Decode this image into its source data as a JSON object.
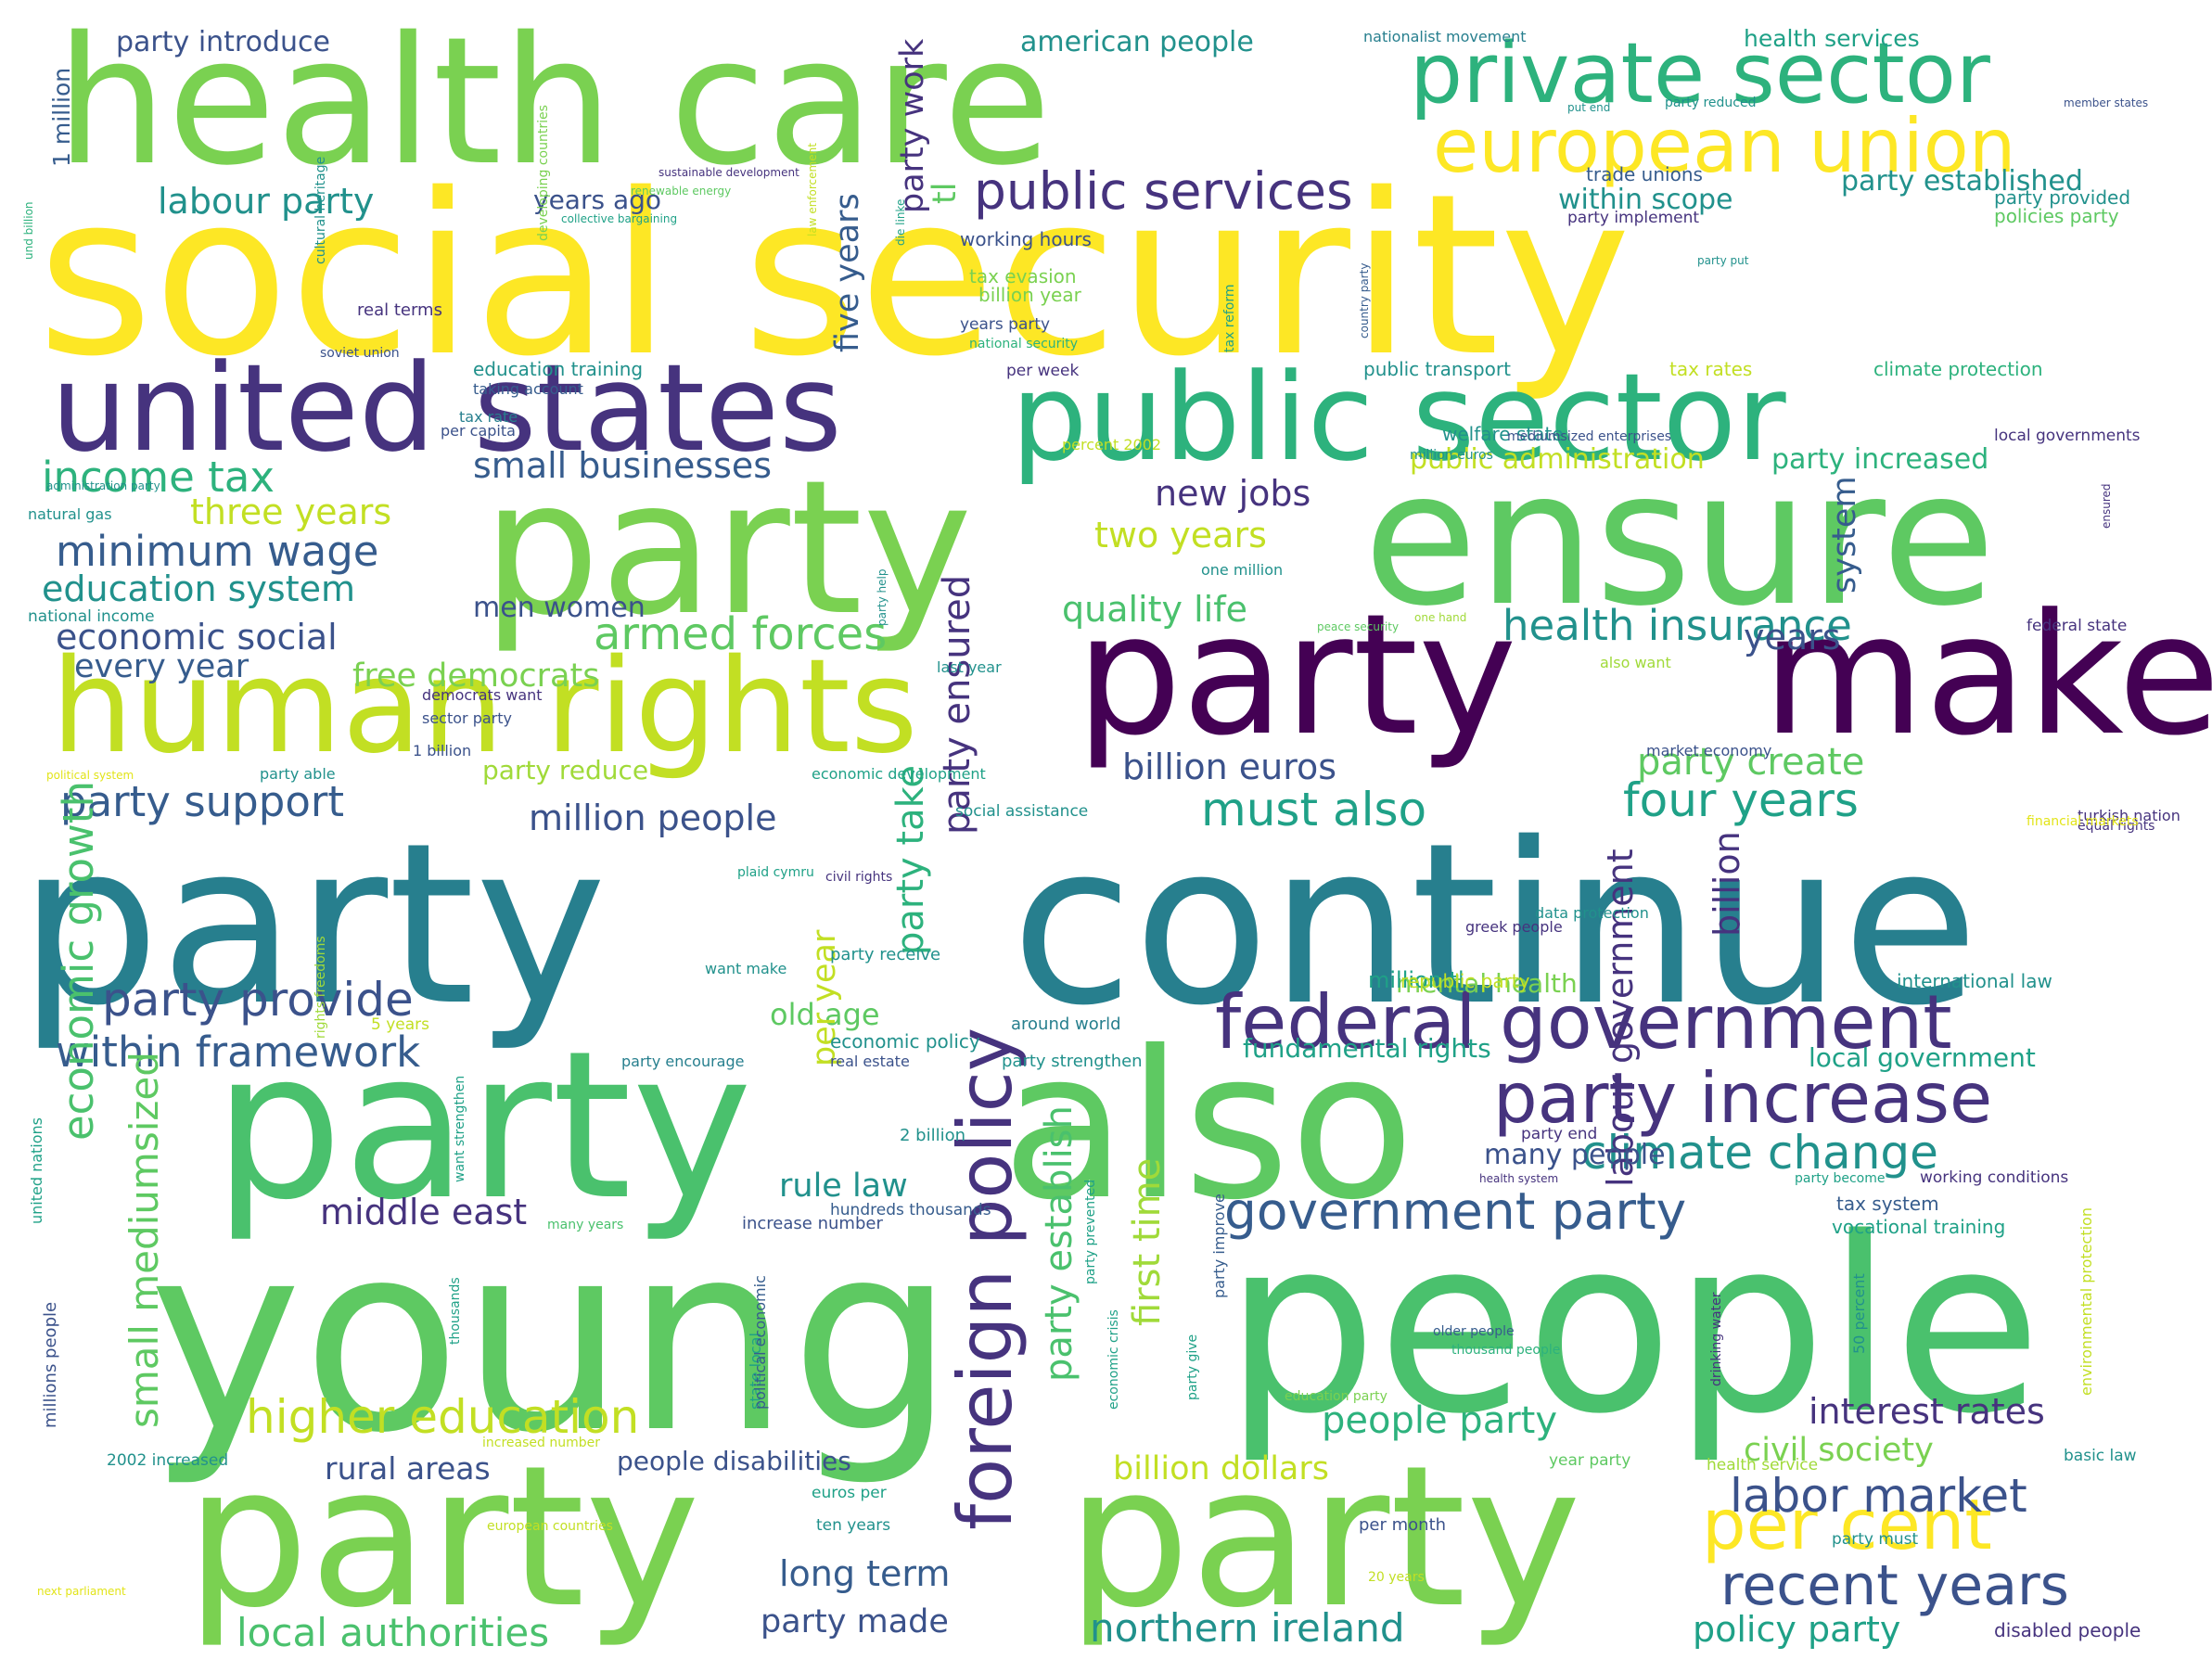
{
  "palette": {
    "background": "#ffffff",
    "dark_purple": "#440154",
    "indigo": "#46337e",
    "slate_blue": "#365c8d",
    "steel_blue": "#3b528b",
    "teal_blue": "#277f8e",
    "teal": "#21918c",
    "green_teal": "#1fa187",
    "sea_green": "#2db27d",
    "green": "#4ac16d",
    "grass_green": "#5ec962",
    "lime": "#7ad151",
    "yellow_green": "#a0da39",
    "chartreuse": "#c2df23",
    "yellow": "#fde725",
    "gold": "#e2e418"
  },
  "words": [
    "health care",
    "social security",
    "private sector",
    "european union",
    "united states",
    "public sector",
    "party",
    "ensure",
    "make",
    "human rights",
    "continue",
    "also",
    "people",
    "young",
    "federal government",
    "party increase",
    "public services",
    "income tax",
    "minimum wage",
    "foreign policy",
    "per cent",
    "recent years",
    "labor market",
    "higher education",
    "government party",
    "climate change",
    "small businesses",
    "three years",
    "education system",
    "economic social",
    "every year",
    "party support",
    "party provide",
    "within framework",
    "new jobs",
    "two years",
    "quality life",
    "armed forces",
    "free democrats",
    "million people",
    "must also",
    "four years",
    "party create",
    "billion euros",
    "health insurance",
    "party introduce",
    "american people",
    "labour party",
    "years ago",
    "within scope",
    "party established",
    "economic growth",
    "small mediumsized",
    "middle east",
    "rule law",
    "long term",
    "party made",
    "northern ireland",
    "local authorities",
    "rural areas",
    "people disabilities",
    "people party",
    "civil society",
    "interest rates",
    "policy party",
    "billion dollars",
    "first time",
    "party establish",
    "party take",
    "party ensured",
    "five years",
    "party work",
    "public administration",
    "party increased",
    "system",
    "labour government",
    "billion",
    "old age",
    "per year",
    "men women",
    "mental health",
    "fundamental rights",
    "local government",
    "many people",
    "disabled people",
    "tax system",
    "vocational training",
    "health services",
    "trade unions",
    "party implement",
    "party provided",
    "policies party",
    "climate protection",
    "local governments",
    "tax rates",
    "welfare state",
    "public transport",
    "working hours",
    "tax evasion",
    "billion year",
    "years party",
    "per week",
    "real terms",
    "education training",
    "taking account",
    "tax rate",
    "per capita",
    "natural gas",
    "national income",
    "economic development",
    "social assistance",
    "political system",
    "party able",
    "party reduce",
    "democrats want",
    "sector party",
    "1 billion",
    "last year",
    "peace security",
    "one hand",
    "federal state",
    "also want",
    "market economy",
    "equal rights",
    "turkish nation",
    "financial markets",
    "international law",
    "data protection",
    "greek people",
    "party receive",
    "million tl",
    "republic party",
    "around world",
    "party strengthen",
    "economic policy",
    "party encourage",
    "real estate",
    "2 billion",
    "party end",
    "health system",
    "party become",
    "working conditions",
    "increase number",
    "many years",
    "hundreds thousands",
    "state local",
    "older people",
    "thousand people",
    "education party",
    "health service",
    "year party",
    "basic law",
    "euros per",
    "ten years",
    "per month",
    "party must",
    "20 years",
    "european countries",
    "next parliament",
    "increased number",
    "2002 increased",
    "5 years",
    "want make",
    "plaid cymru",
    "civil rights",
    "want strengthen",
    "rights freedoms",
    "united nations",
    "millions people",
    "thousands",
    "political economic",
    "party give",
    "party improve",
    "drinking water",
    "50 percent",
    "environmental protection",
    "economic crisis",
    "party prevented",
    "tax reform",
    "country party",
    "party put",
    "national security",
    "percent 2002",
    "million euros",
    "mediumsized enterprises",
    "one million",
    "party help",
    "soviet union",
    "cultural heritage",
    "developing countries",
    "collective bargaining",
    "renewable energy",
    "law enforcement",
    "sustainable development",
    "und billion",
    "die linke",
    "1 million",
    "nationalist movement",
    "put end",
    "party reduced",
    "member states",
    "administration party",
    "ensured",
    "tl",
    "years"
  ]
}
